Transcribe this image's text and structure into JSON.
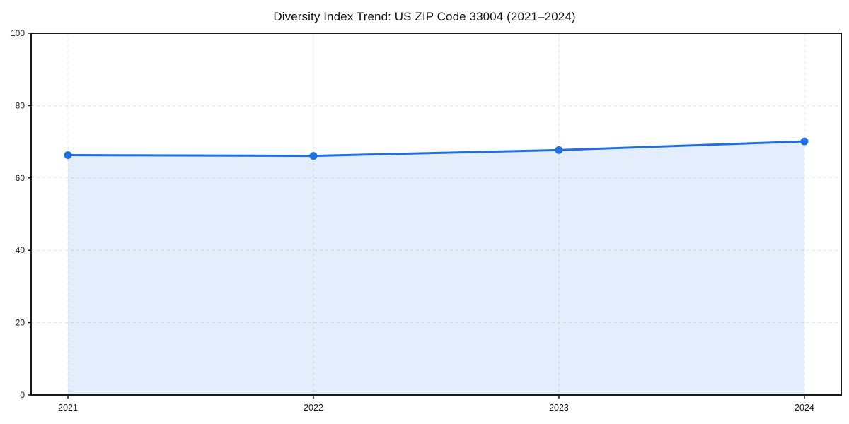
{
  "figure": {
    "background": "#ffffff"
  },
  "chart_data": {
    "type": "area",
    "title": "Diversity Index Trend: US ZIP Code 33004 (2021–2024)",
    "categories": [
      "2021",
      "2022",
      "2023",
      "2024"
    ],
    "series": [
      {
        "name": "Diversity Index",
        "values": [
          66.3,
          66.1,
          67.7,
          70.1
        ]
      }
    ],
    "xlabel": "",
    "ylabel": "",
    "ylim": [
      0,
      100
    ],
    "yticks": [
      0,
      20,
      40,
      60,
      80,
      100
    ],
    "grid": true,
    "grid_style": "dashed",
    "legend_position": "none",
    "colors": {
      "line": "#1f6fe0",
      "marker": "#1f6fe0",
      "fill": "rgba(31,111,224,0.12)",
      "grid": "#e2e2e2",
      "axis": "#1a1a1a",
      "tick_text": "#1a1a1a",
      "title_text": "#111111"
    }
  }
}
